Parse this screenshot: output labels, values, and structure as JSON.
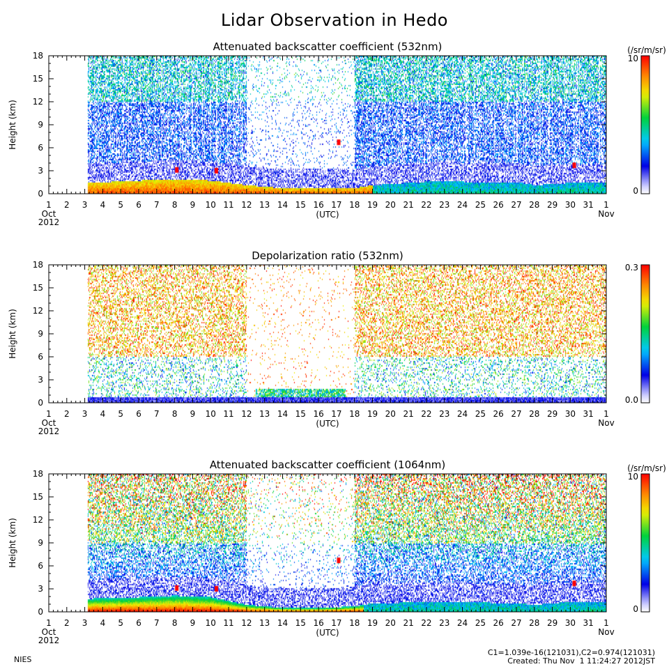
{
  "figure": {
    "title": "Lidar Observation in Hedo",
    "footer_left": "NIES",
    "footer_right_line1": "C1=1.039e-16(121031),C2=0.974(121031)",
    "footer_right_line2": "Created: Thu Nov  1 11:24:27 2012JST"
  },
  "chart_data": [
    {
      "type": "heatmap",
      "title": "Attenuated backscatter coefficient (532nm)",
      "xlabel": "(UTC)",
      "ylabel": "Height (km)",
      "xlim_days": [
        1,
        32
      ],
      "x_tick_labels": [
        "1",
        "2",
        "3",
        "4",
        "5",
        "6",
        "7",
        "8",
        "9",
        "10",
        "11",
        "12",
        "13",
        "14",
        "15",
        "16",
        "17",
        "18",
        "19",
        "20",
        "21",
        "22",
        "23",
        "24",
        "25",
        "26",
        "27",
        "28",
        "29",
        "30",
        "31",
        "1"
      ],
      "x_start_label": [
        "Oct",
        "2012"
      ],
      "x_end_label": "Nov",
      "ylim": [
        0,
        18
      ],
      "y_ticks": [
        0,
        3,
        6,
        9,
        12,
        15,
        18
      ],
      "data_start_day": 3.2,
      "colorbar": {
        "unit": "(/sr/m/sr)",
        "top": "10",
        "bottom": "0",
        "colormap": "rainbow",
        "bottom_color": "#ffffff",
        "top_color": "#ff0000"
      },
      "signal": {
        "aerosol_layer_top_km_by_day": [
          [
            3.2,
            1.5
          ],
          [
            6,
            1.8
          ],
          [
            8,
            2.0
          ],
          [
            10,
            1.8
          ],
          [
            12,
            1.2
          ],
          [
            14,
            0.8
          ],
          [
            16,
            0.8
          ],
          [
            18,
            0.8
          ],
          [
            19,
            1.2
          ],
          [
            21,
            1.5
          ],
          [
            23,
            1.8
          ],
          [
            25,
            1.5
          ],
          [
            27,
            1.6
          ],
          [
            28,
            1.2
          ],
          [
            30,
            1.5
          ],
          [
            32,
            1.5
          ]
        ],
        "clear_period_days": [
          12.0,
          18.0
        ],
        "clouds": [
          {
            "day": 8.1,
            "km": 3.2
          },
          {
            "day": 10.3,
            "km": 3.1
          },
          {
            "day": 17.1,
            "km": 6.8
          },
          {
            "day": 30.2,
            "km": 3.8
          }
        ]
      }
    },
    {
      "type": "heatmap",
      "title": "Depolarization ratio (532nm)",
      "xlabel": "(UTC)",
      "ylabel": "Height (km)",
      "xlim_days": [
        1,
        32
      ],
      "x_tick_labels": [
        "1",
        "2",
        "3",
        "4",
        "5",
        "6",
        "7",
        "8",
        "9",
        "10",
        "11",
        "12",
        "13",
        "14",
        "15",
        "16",
        "17",
        "18",
        "19",
        "20",
        "21",
        "22",
        "23",
        "24",
        "25",
        "26",
        "27",
        "28",
        "29",
        "30",
        "31",
        "1"
      ],
      "x_start_label": [
        "Oct",
        "2012"
      ],
      "x_end_label": "Nov",
      "ylim": [
        0,
        18
      ],
      "y_ticks": [
        0,
        3,
        6,
        9,
        12,
        15,
        18
      ],
      "data_start_day": 3.2,
      "colorbar": {
        "unit": "",
        "top": "0.3",
        "bottom": "0.0",
        "colormap": "rainbow",
        "bottom_color": "#ffffff",
        "top_color": "#ff0000"
      },
      "signal": {
        "clear_period_days": [
          12.0,
          18.0
        ],
        "dust_layer_days": [
          12.5,
          17.5
        ],
        "dust_layer_km": [
          0.8,
          2.0
        ]
      }
    },
    {
      "type": "heatmap",
      "title": "Attenuated backscatter coefficient (1064nm)",
      "xlabel": "(UTC)",
      "ylabel": "Height (km)",
      "xlim_days": [
        1,
        32
      ],
      "x_tick_labels": [
        "1",
        "2",
        "3",
        "4",
        "5",
        "6",
        "7",
        "8",
        "9",
        "10",
        "11",
        "12",
        "13",
        "14",
        "15",
        "16",
        "17",
        "18",
        "19",
        "20",
        "21",
        "22",
        "23",
        "24",
        "25",
        "26",
        "27",
        "28",
        "29",
        "30",
        "31",
        "1"
      ],
      "x_start_label": [
        "Oct",
        "2012"
      ],
      "x_end_label": "Nov",
      "ylim": [
        0,
        18
      ],
      "y_ticks": [
        0,
        3,
        6,
        9,
        12,
        15,
        18
      ],
      "data_start_day": 3.2,
      "colorbar": {
        "unit": "(/sr/m/sr)",
        "top": "10",
        "bottom": "0",
        "colormap": "rainbow",
        "bottom_color": "#ffffff",
        "top_color": "#ff0000"
      },
      "signal": {
        "aerosol_layer_top_km_by_day": [
          [
            3.2,
            1.8
          ],
          [
            6,
            2.0
          ],
          [
            8,
            2.2
          ],
          [
            10,
            2.0
          ],
          [
            12,
            1.0
          ],
          [
            14,
            0.6
          ],
          [
            16,
            0.6
          ],
          [
            18,
            0.8
          ],
          [
            19,
            1.2
          ],
          [
            21,
            1.3
          ],
          [
            23,
            1.4
          ],
          [
            25,
            1.3
          ],
          [
            27,
            1.2
          ],
          [
            28,
            1.0
          ],
          [
            30,
            1.4
          ],
          [
            32,
            1.4
          ]
        ],
        "clear_period_days": [
          12.0,
          18.0
        ],
        "clouds": [
          {
            "day": 8.1,
            "km": 3.2
          },
          {
            "day": 10.3,
            "km": 3.1
          },
          {
            "day": 17.1,
            "km": 6.8
          },
          {
            "day": 30.2,
            "km": 3.8
          }
        ]
      }
    }
  ]
}
